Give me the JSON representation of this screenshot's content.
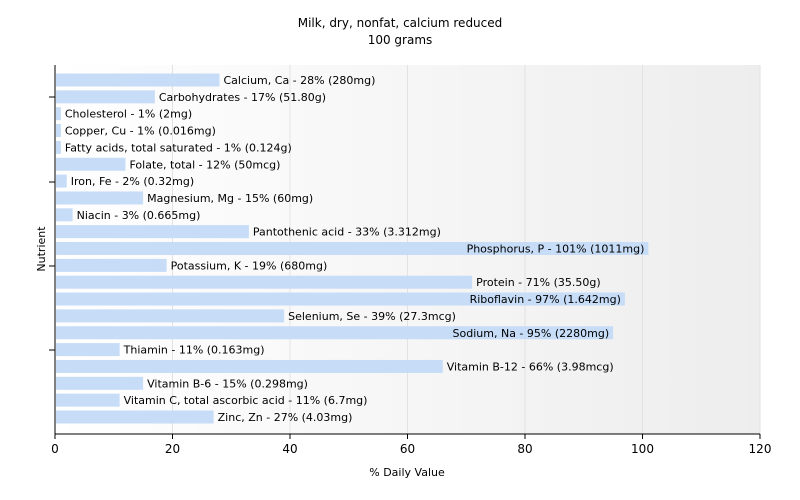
{
  "chart_data": {
    "type": "bar",
    "orientation": "horizontal",
    "title": "Milk, dry, nonfat, calcium reduced",
    "subtitle": "100 grams",
    "xlabel": "% Daily Value",
    "ylabel": "Nutrient",
    "xlim": [
      0,
      120
    ],
    "xticks": [
      0,
      20,
      40,
      60,
      80,
      100,
      120
    ],
    "grid": false,
    "bar_color": "#c6dcf7",
    "categories": [
      "Calcium, Ca",
      "Carbohydrates",
      "Cholesterol",
      "Copper, Cu",
      "Fatty acids, total saturated",
      "Folate, total",
      "Iron, Fe",
      "Magnesium, Mg",
      "Niacin",
      "Pantothenic acid",
      "Phosphorus, P",
      "Potassium, K",
      "Protein",
      "Riboflavin",
      "Selenium, Se",
      "Sodium, Na",
      "Thiamin",
      "Vitamin B-12",
      "Vitamin B-6",
      "Vitamin C, total ascorbic acid",
      "Zinc, Zn"
    ],
    "values": [
      28,
      17,
      1,
      1,
      1,
      12,
      2,
      15,
      3,
      33,
      101,
      19,
      71,
      97,
      39,
      95,
      11,
      66,
      15,
      11,
      27
    ],
    "labels": [
      "Calcium, Ca - 28% (280mg)",
      "Carbohydrates - 17% (51.80g)",
      "Cholesterol - 1% (2mg)",
      "Copper, Cu - 1% (0.016mg)",
      "Fatty acids, total saturated - 1% (0.124g)",
      "Folate, total - 12% (50mcg)",
      "Iron, Fe - 2% (0.32mg)",
      "Magnesium, Mg - 15% (60mg)",
      "Niacin - 3% (0.665mg)",
      "Pantothenic acid - 33% (3.312mg)",
      "Phosphorus, P - 101% (1011mg)",
      "Potassium, K - 19% (680mg)",
      "Protein - 71% (35.50g)",
      "Riboflavin - 97% (1.642mg)",
      "Selenium, Se - 39% (27.3mcg)",
      "Sodium, Na - 95% (2280mg)",
      "Thiamin - 11% (0.163mg)",
      "Vitamin B-12 - 66% (3.98mcg)",
      "Vitamin B-6 - 15% (0.298mg)",
      "Vitamin C, total ascorbic acid - 11% (6.7mg)",
      "Zinc, Zn - 27% (4.03mg)"
    ]
  }
}
